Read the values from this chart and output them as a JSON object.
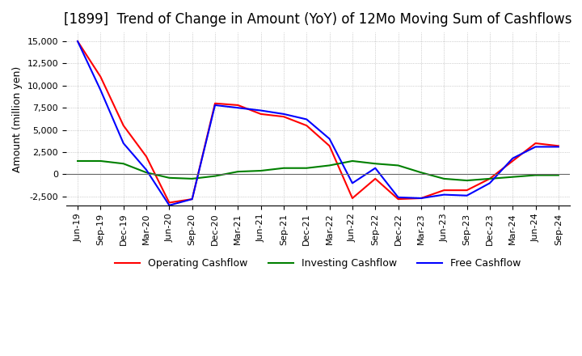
{
  "title": "[1899]  Trend of Change in Amount (YoY) of 12Mo Moving Sum of Cashflows",
  "ylabel": "Amount (million yen)",
  "x_labels": [
    "Jun-19",
    "Sep-19",
    "Dec-19",
    "Mar-20",
    "Jun-20",
    "Sep-20",
    "Dec-20",
    "Mar-21",
    "Jun-21",
    "Sep-21",
    "Dec-21",
    "Mar-22",
    "Jun-22",
    "Sep-22",
    "Dec-22",
    "Mar-23",
    "Jun-23",
    "Sep-23",
    "Dec-23",
    "Mar-24",
    "Jun-24",
    "Sep-24"
  ],
  "operating": [
    15000,
    11000,
    5500,
    2000,
    -3200,
    -2800,
    8000,
    7800,
    6800,
    6500,
    5500,
    3200,
    -2700,
    -500,
    -2800,
    -2700,
    -1800,
    -1800,
    -500,
    1500,
    3500,
    3200
  ],
  "investing": [
    1500,
    1500,
    1200,
    200,
    -400,
    -500,
    -200,
    300,
    400,
    700,
    700,
    1000,
    1500,
    1200,
    1000,
    200,
    -500,
    -700,
    -500,
    -300,
    -100,
    -100
  ],
  "free": [
    15000,
    9500,
    3500,
    500,
    -3500,
    -2800,
    7800,
    7500,
    7200,
    6800,
    6200,
    4000,
    -1000,
    700,
    -2600,
    -2700,
    -2300,
    -2400,
    -1000,
    1800,
    3100,
    3100
  ],
  "ylim": [
    -3500,
    16000
  ],
  "yticks": [
    -2500,
    0,
    2500,
    5000,
    7500,
    10000,
    12500,
    15000
  ],
  "operating_color": "#ff0000",
  "investing_color": "#008000",
  "free_color": "#0000ff",
  "background_color": "#ffffff",
  "grid_color": "#aaaaaa",
  "title_fontsize": 12,
  "title_fontweight": "normal",
  "legend_labels": [
    "Operating Cashflow",
    "Investing Cashflow",
    "Free Cashflow"
  ]
}
